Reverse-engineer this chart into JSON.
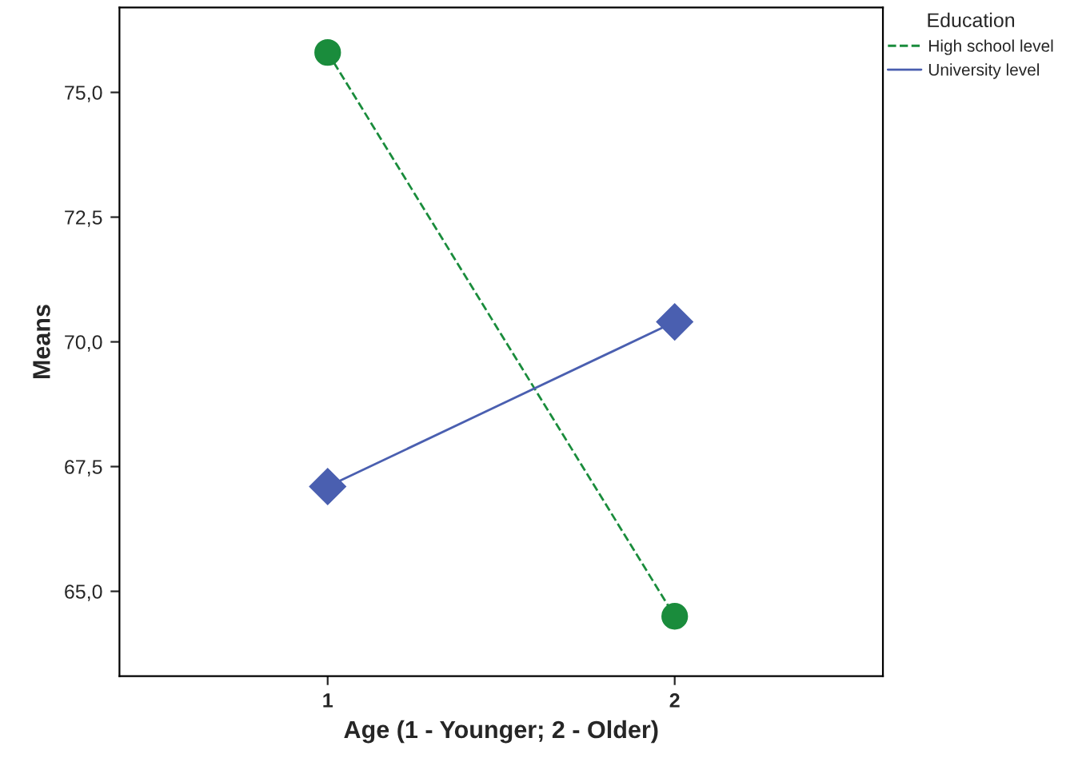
{
  "chart_data": {
    "type": "line",
    "xlabel": "Age (1 - Younger; 2 - Older)",
    "ylabel": "Means",
    "legend_title": "Education",
    "legend": "top right",
    "grid": false,
    "x": [
      1,
      2
    ],
    "xlim": [
      0.4,
      2.6
    ],
    "xticks": [
      1,
      2
    ],
    "ylim": [
      63.3,
      76.7
    ],
    "yticks": [
      {
        "value": 65,
        "label": "65,0"
      },
      {
        "value": 67.5,
        "label": "67,5"
      },
      {
        "value": 70,
        "label": "70,0"
      },
      {
        "value": 72.5,
        "label": "72,5"
      },
      {
        "value": 75,
        "label": "75,0"
      }
    ],
    "series": [
      {
        "name": "High school level",
        "color": "#1a8c3c",
        "values": [
          75.8,
          64.5
        ],
        "marker": "circle",
        "line_style": "dashed"
      },
      {
        "name": "University level",
        "color": "#4a5fb0",
        "values": [
          67.1,
          70.4
        ],
        "marker": "diamond",
        "line_style": "solid"
      }
    ]
  }
}
